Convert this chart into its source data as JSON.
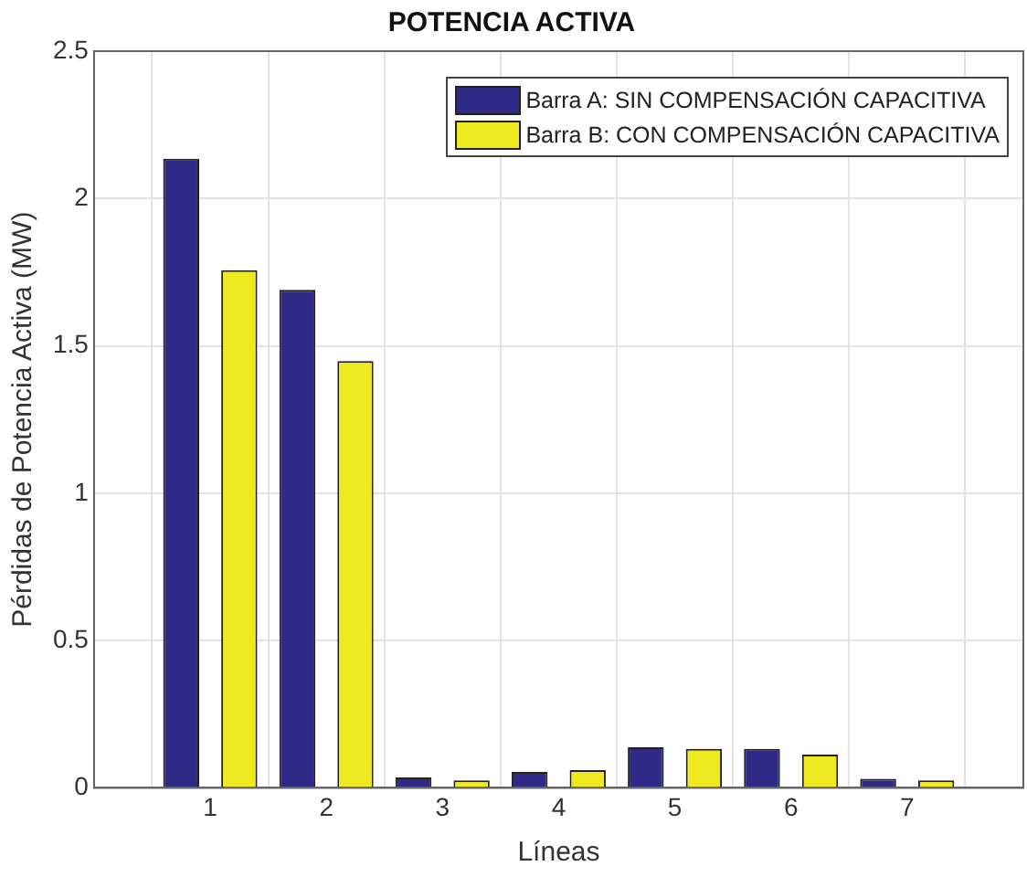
{
  "chart_data": {
    "type": "bar",
    "title": "POTENCIA ACTIVA",
    "xlabel": "Líneas",
    "ylabel": "Pérdidas de Potencia Activa (MW)",
    "x": [
      1,
      2,
      3,
      4,
      5,
      6,
      7
    ],
    "series": [
      {
        "name": "Barra A: SIN COMPENSACIÓN CAPACITIVA",
        "color": "#2f2a85",
        "values": [
          2.135,
          1.69,
          0.035,
          0.054,
          0.138,
          0.132,
          0.031
        ]
      },
      {
        "name": "Barra B: CON COMPENSACIÓN CAPACITIVA",
        "color": "#efea1f",
        "values": [
          1.757,
          1.448,
          0.025,
          0.06,
          0.132,
          0.113,
          0.025
        ]
      }
    ],
    "xlim": [
      0,
      8
    ],
    "xticks": [
      1,
      2,
      3,
      4,
      5,
      6,
      7
    ],
    "ylim": [
      0,
      2.5
    ],
    "yticks": [
      0,
      0.5,
      1,
      1.5,
      2,
      2.5
    ],
    "grid": true,
    "legend": "top right"
  }
}
